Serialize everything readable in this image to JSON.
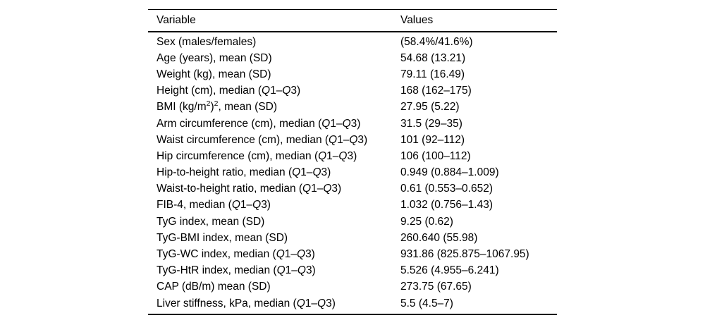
{
  "table": {
    "header": {
      "variable": "Variable",
      "values": "Values"
    },
    "rows": [
      {
        "variable": [
          "Sex (males/females)"
        ],
        "value": "(58.4%/41.6%)"
      },
      {
        "variable": [
          "Age (years), mean (SD)"
        ],
        "value": "54.68 (13.21)"
      },
      {
        "variable": [
          "Weight (kg), mean (SD)"
        ],
        "value": "79.11 (16.49)"
      },
      {
        "variable": [
          "Height (cm), median (",
          {
            "i": "Q"
          },
          "1–",
          {
            "i": "Q"
          },
          "3)"
        ],
        "value": "168 (162–175)"
      },
      {
        "variable": [
          "BMI (kg/m",
          {
            "sup": "2"
          },
          ")",
          {
            "sup": "2"
          },
          ", mean (SD)"
        ],
        "value": "27.95 (5.22)"
      },
      {
        "variable": [
          "Arm circumference (cm), median (",
          {
            "i": "Q"
          },
          "1–",
          {
            "i": "Q"
          },
          "3)"
        ],
        "value": "31.5 (29–35)"
      },
      {
        "variable": [
          "Waist circumference (cm), median (",
          {
            "i": "Q"
          },
          "1–",
          {
            "i": "Q"
          },
          "3)"
        ],
        "value": "101 (92–112)"
      },
      {
        "variable": [
          "Hip circumference (cm), median (",
          {
            "i": "Q"
          },
          "1–",
          {
            "i": "Q"
          },
          "3)"
        ],
        "value": "106 (100–112)"
      },
      {
        "variable": [
          "Hip-to-height ratio, median (",
          {
            "i": "Q"
          },
          "1–",
          {
            "i": "Q"
          },
          "3)"
        ],
        "value": "0.949 (0.884–1.009)"
      },
      {
        "variable": [
          "Waist-to-height ratio, median (",
          {
            "i": "Q"
          },
          "1–",
          {
            "i": "Q"
          },
          "3)"
        ],
        "value": "0.61 (0.553–0.652)"
      },
      {
        "variable": [
          "FIB-4, median (",
          {
            "i": "Q"
          },
          "1–",
          {
            "i": "Q"
          },
          "3)"
        ],
        "value": "1.032 (0.756–1.43)"
      },
      {
        "variable": [
          "TyG index, mean (SD)"
        ],
        "value": "9.25 (0.62)"
      },
      {
        "variable": [
          "TyG-BMI index, mean (SD)"
        ],
        "value": "260.640 (55.98)"
      },
      {
        "variable": [
          "TyG-WC index, median (",
          {
            "i": "Q"
          },
          "1–",
          {
            "i": "Q"
          },
          "3)"
        ],
        "value": "931.86 (825.875–1067.95)"
      },
      {
        "variable": [
          "TyG-HtR index, median (",
          {
            "i": "Q"
          },
          "1–",
          {
            "i": "Q"
          },
          "3)"
        ],
        "value": "5.526 (4.955–6.241)"
      },
      {
        "variable": [
          "CAP (dB/m) mean (SD)"
        ],
        "value": "273.75 (67.65)"
      },
      {
        "variable": [
          "Liver stiffness, kPa, median (",
          {
            "i": "Q"
          },
          "1–",
          {
            "i": "Q"
          },
          "3)"
        ],
        "value": "5.5 (4.5–7)"
      }
    ]
  },
  "colors": {
    "text": "#000000",
    "rule": "#000000",
    "background": "#ffffff"
  }
}
